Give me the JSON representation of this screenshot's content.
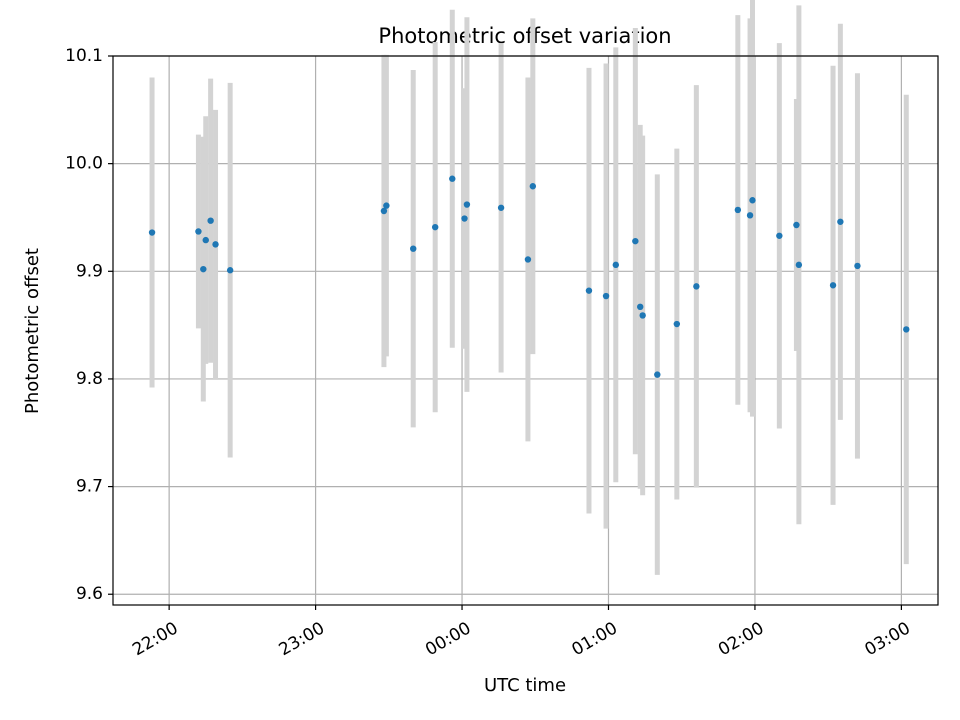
{
  "chart_data": {
    "type": "scatter",
    "title": "Photometric offset variation",
    "xlabel": "UTC time",
    "ylabel": "Photometric offset",
    "grid": true,
    "x_axis": {
      "kind": "time",
      "range": [
        "21:37",
        "03:15"
      ],
      "ticks": [
        "22:00",
        "23:00",
        "00:00",
        "01:00",
        "02:00",
        "03:00"
      ]
    },
    "y_axis": {
      "range": [
        9.59,
        10.1
      ],
      "ticks": [
        "9.6",
        "9.7",
        "9.8",
        "9.9",
        "10.0",
        "10.1"
      ]
    },
    "colors": {
      "points": "#1f77b4",
      "errorbars": "#d3d3d3",
      "grid": "#b0b0b0"
    },
    "points": [
      {
        "x": "21:53",
        "y": 9.936,
        "err": 0.144
      },
      {
        "x": "22:12",
        "y": 9.937,
        "err": 0.09
      },
      {
        "x": "22:14",
        "y": 9.902,
        "err": 0.123
      },
      {
        "x": "22:15",
        "y": 9.929,
        "err": 0.115
      },
      {
        "x": "22:17",
        "y": 9.947,
        "err": 0.132
      },
      {
        "x": "22:19",
        "y": 9.925,
        "err": 0.125
      },
      {
        "x": "22:25",
        "y": 9.901,
        "err": 0.174
      },
      {
        "x": "23:28",
        "y": 9.956,
        "err": 0.145
      },
      {
        "x": "23:29",
        "y": 9.961,
        "err": 0.14
      },
      {
        "x": "23:40",
        "y": 9.921,
        "err": 0.166
      },
      {
        "x": "23:49",
        "y": 9.941,
        "err": 0.172
      },
      {
        "x": "23:56",
        "y": 9.986,
        "err": 0.157
      },
      {
        "x": "00:01",
        "y": 9.949,
        "err": 0.121
      },
      {
        "x": "00:02",
        "y": 9.962,
        "err": 0.174
      },
      {
        "x": "00:16",
        "y": 9.959,
        "err": 0.153
      },
      {
        "x": "00:27",
        "y": 9.911,
        "err": 0.169
      },
      {
        "x": "00:29",
        "y": 9.979,
        "err": 0.156
      },
      {
        "x": "00:52",
        "y": 9.882,
        "err": 0.207
      },
      {
        "x": "00:59",
        "y": 9.877,
        "err": 0.216
      },
      {
        "x": "01:03",
        "y": 9.906,
        "err": 0.202
      },
      {
        "x": "01:11",
        "y": 9.928,
        "err": 0.198
      },
      {
        "x": "01:13",
        "y": 9.867,
        "err": 0.169
      },
      {
        "x": "01:14",
        "y": 9.859,
        "err": 0.167
      },
      {
        "x": "01:20",
        "y": 9.804,
        "err": 0.186
      },
      {
        "x": "01:28",
        "y": 9.851,
        "err": 0.163
      },
      {
        "x": "01:36",
        "y": 9.886,
        "err": 0.187
      },
      {
        "x": "01:53",
        "y": 9.957,
        "err": 0.181
      },
      {
        "x": "01:58",
        "y": 9.952,
        "err": 0.183
      },
      {
        "x": "01:59",
        "y": 9.966,
        "err": 0.201
      },
      {
        "x": "02:10",
        "y": 9.933,
        "err": 0.179
      },
      {
        "x": "02:17",
        "y": 9.943,
        "err": 0.117
      },
      {
        "x": "02:18",
        "y": 9.906,
        "err": 0.241
      },
      {
        "x": "02:32",
        "y": 9.887,
        "err": 0.204
      },
      {
        "x": "02:35",
        "y": 9.946,
        "err": 0.184
      },
      {
        "x": "02:42",
        "y": 9.905,
        "err": 0.179
      },
      {
        "x": "03:02",
        "y": 9.846,
        "err": 0.218
      }
    ]
  }
}
